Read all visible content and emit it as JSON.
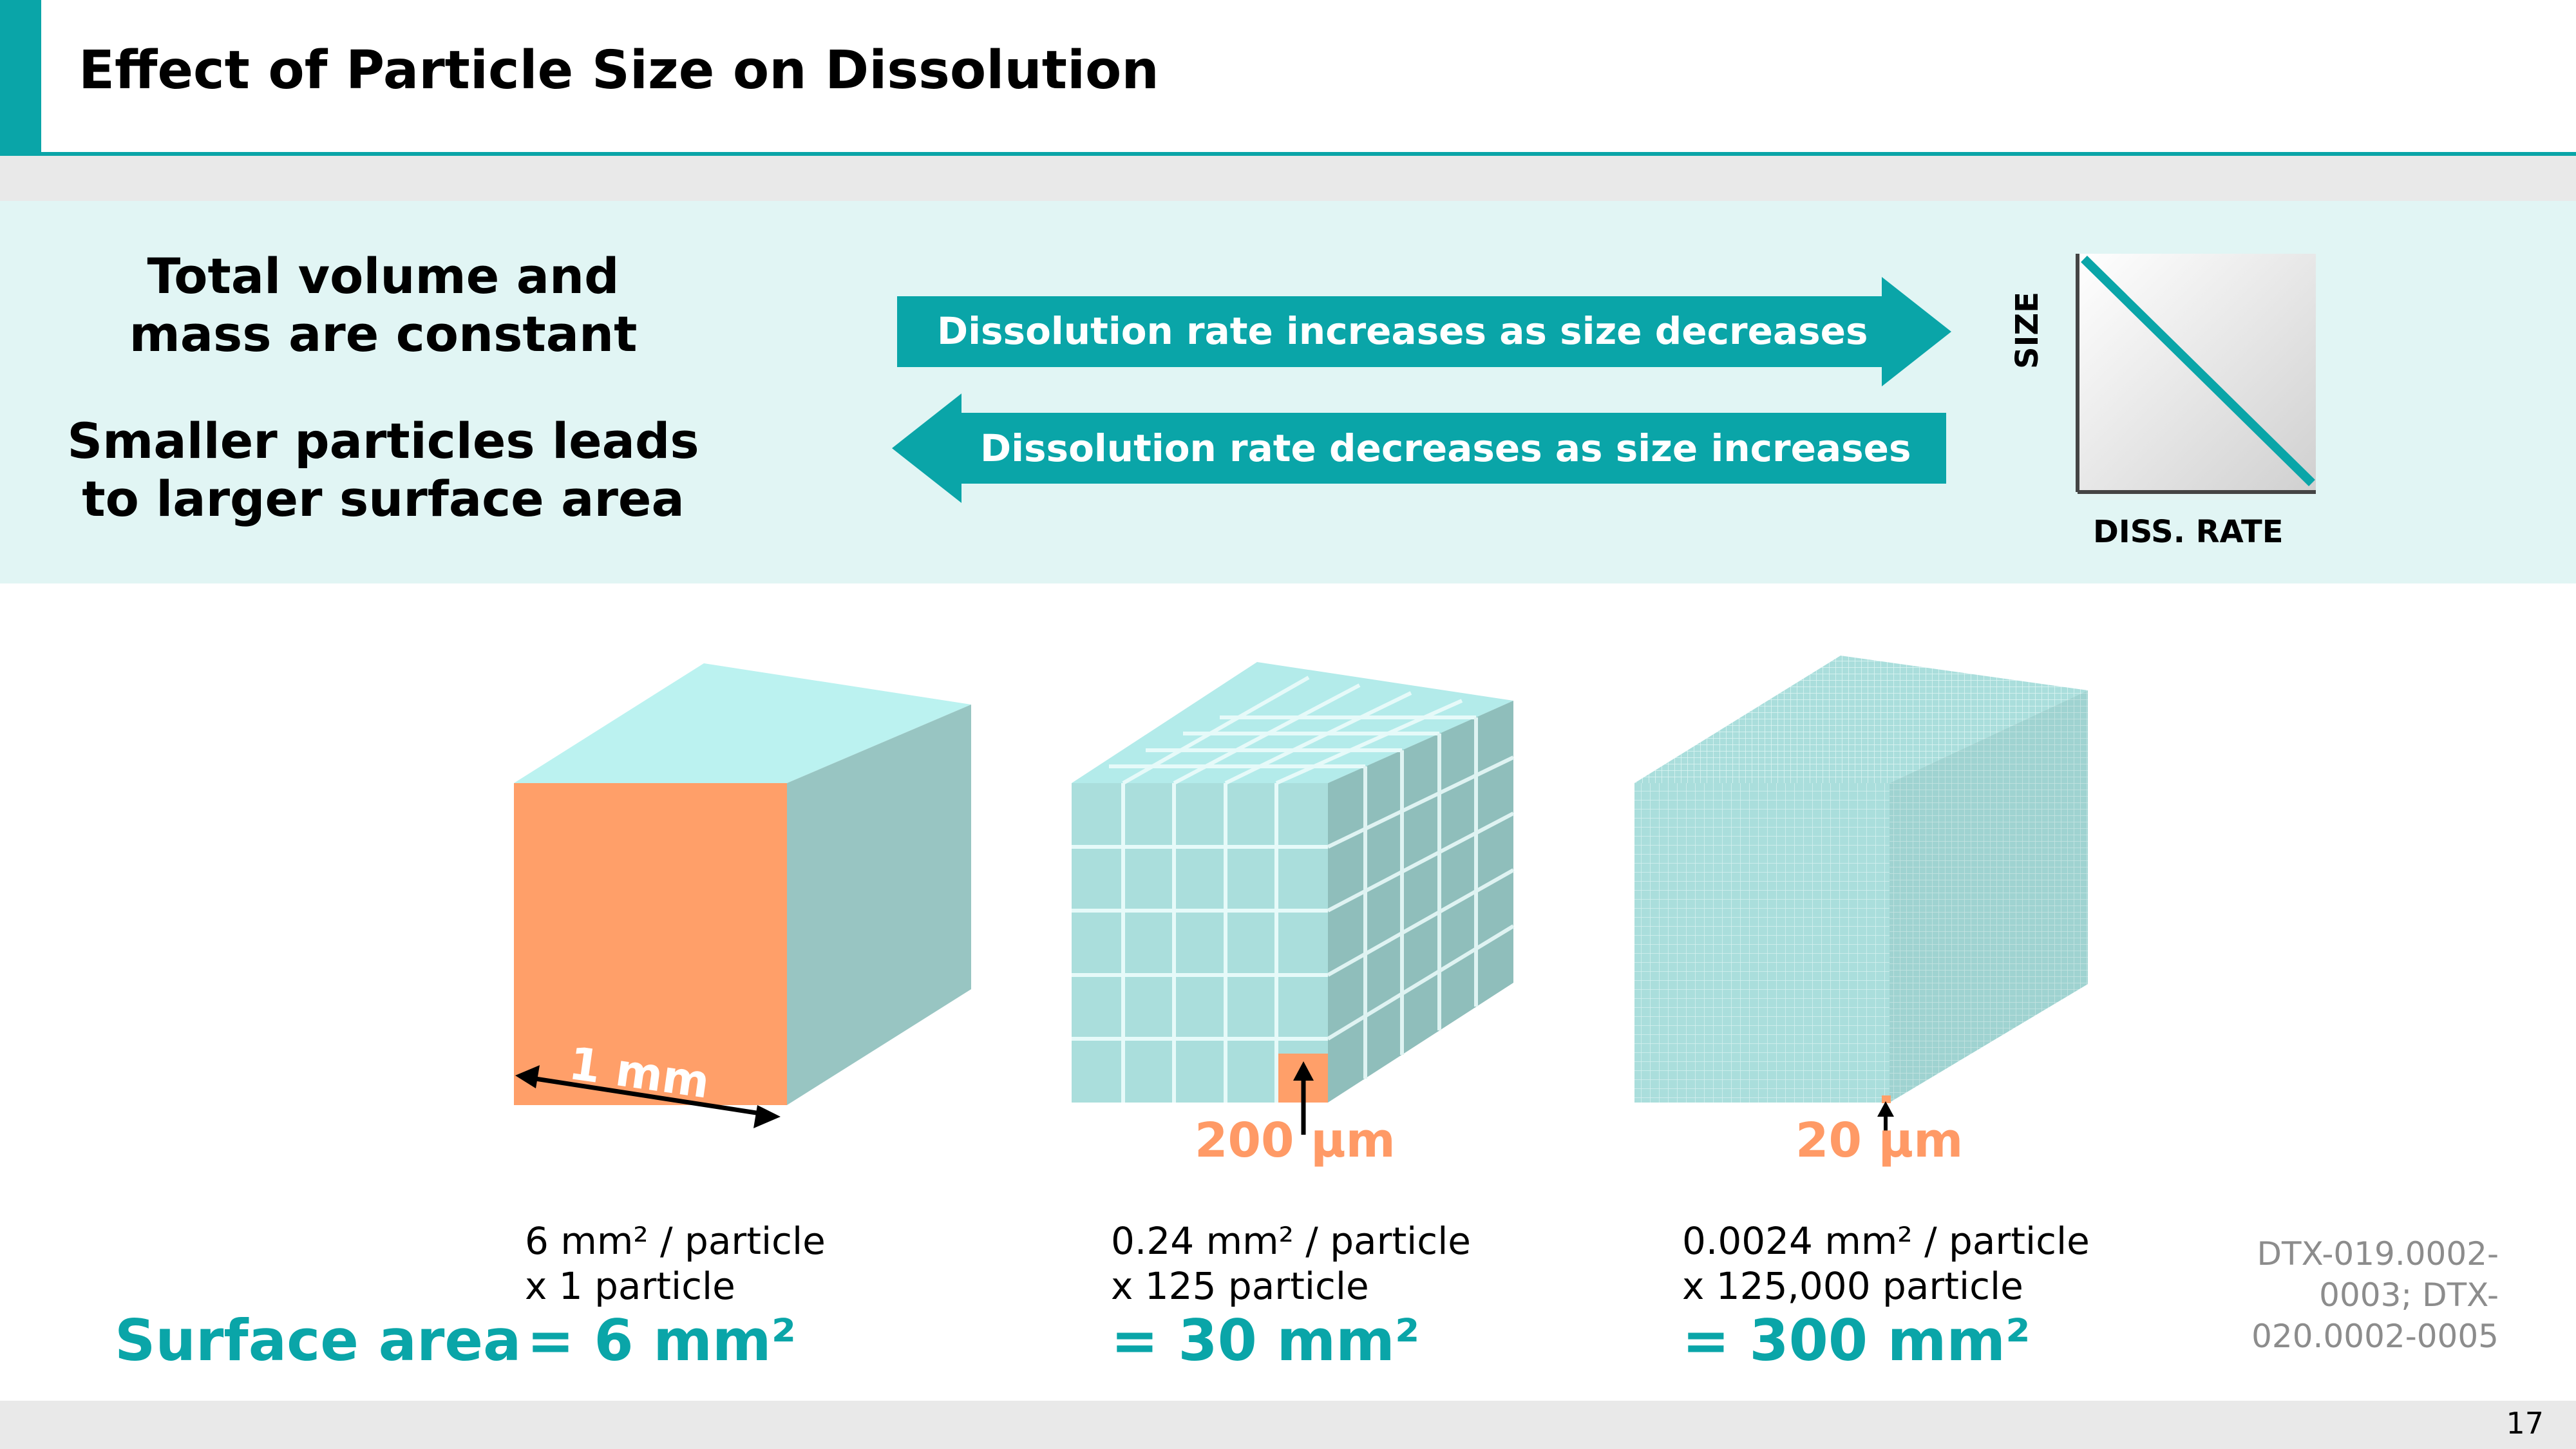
{
  "header": {
    "title": "Effect of Particle Size on Dissolution"
  },
  "panel": {
    "left_text_1": [
      "Total volume and",
      "mass are constant"
    ],
    "left_text_2": [
      "Smaller particles leads",
      "to larger surface area"
    ],
    "arrow_right_label": "Dissolution rate increases as size decreases",
    "arrow_left_label": "Dissolution rate decreases as size increases",
    "mini_chart": {
      "y_label": "SIZE",
      "x_label": "DISS. RATE"
    }
  },
  "cubes": [
    {
      "dimension": "1 mm",
      "caption_1": "6 mm² / particle",
      "caption_2": "x 1 particle",
      "result": "= 6 mm²"
    },
    {
      "dimension": "200 µm",
      "caption_1": "0.24 mm² / particle",
      "caption_2": "x 125 particle",
      "result": "= 30 mm²"
    },
    {
      "dimension": "20 µm",
      "caption_1": "0.0024 mm² / particle",
      "caption_2": "x 125,000 particle",
      "result": "= 300 mm²"
    }
  ],
  "surface_area_label": "Surface area",
  "reference": [
    "DTX-019.0002-",
    "0003; DTX-",
    "020.0002-0005"
  ],
  "page_number": "17",
  "colors": {
    "accent": "#0aa5a8",
    "orange": "#ff9a66",
    "cube_top": "#bbf2f0",
    "cube_side": "#98c5c2",
    "panel": "#e1f5f4"
  }
}
